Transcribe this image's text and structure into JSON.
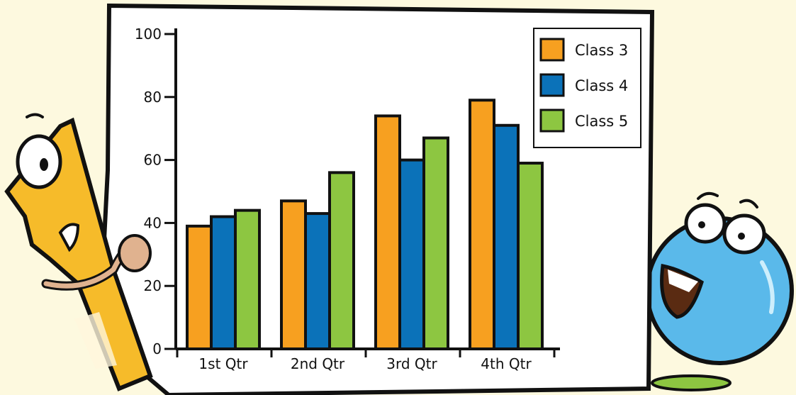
{
  "chart_data": {
    "type": "bar",
    "categories": [
      "1st Qtr",
      "2nd Qtr",
      "3rd Qtr",
      "4th Qtr"
    ],
    "series": [
      {
        "name": "Class 3",
        "color": "#f7a020",
        "values": [
          39,
          47,
          74,
          79
        ]
      },
      {
        "name": "Class 4",
        "color": "#0b72b9",
        "values": [
          42,
          43,
          60,
          71
        ]
      },
      {
        "name": "Class 5",
        "color": "#8dc641",
        "values": [
          44,
          56,
          67,
          59
        ]
      }
    ],
    "yticks": [
      0,
      20,
      40,
      60,
      80,
      100
    ],
    "ylim": [
      0,
      100
    ],
    "legend_position": "top-right",
    "grid": false
  },
  "characters": {
    "left": {
      "icon": "number-one-character-icon"
    },
    "right": {
      "icon": "blue-ball-character-icon"
    }
  }
}
